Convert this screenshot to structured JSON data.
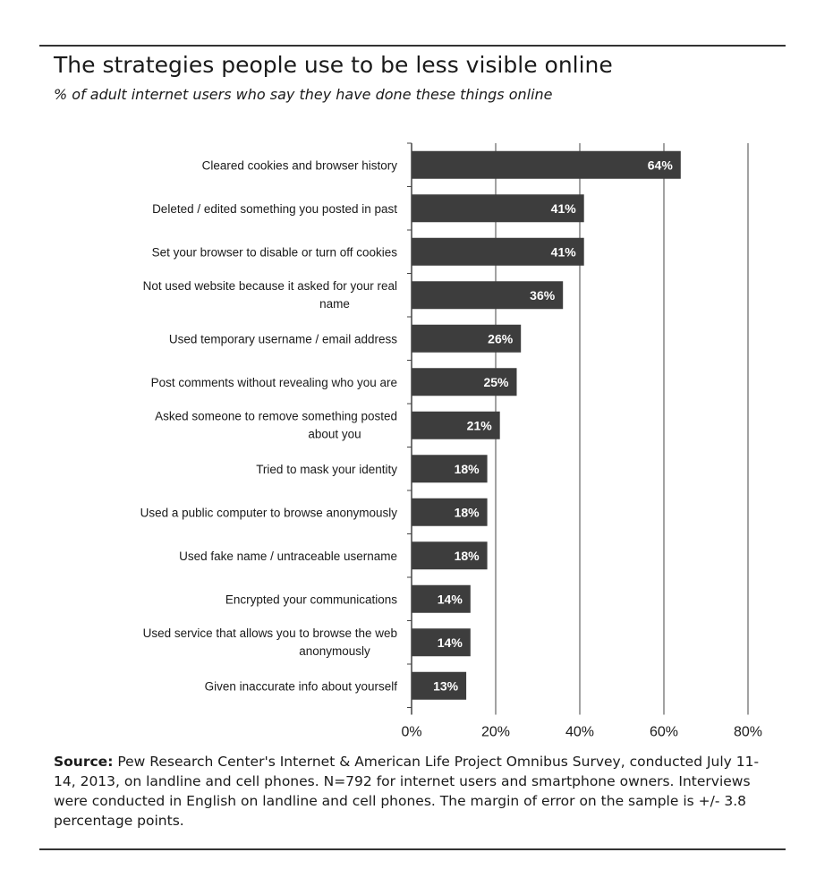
{
  "title": "The strategies people use to be less visible online",
  "subtitle": "% of adult internet users who say they have done these things online",
  "source_label": "Source:",
  "source_text": "Pew Research Center's Internet & American Life Project Omnibus Survey, conducted July 11-14, 2013, on landline and cell phones. N=792 for internet users and smartphone owners. Interviews were conducted in English on landline and cell phones. The margin of error on the sample is +/- 3.8 percentage points.",
  "colors": {
    "bar": "#3d3d3d",
    "grid": "#444444",
    "text": "#1a1a1a",
    "bar_label": "#ffffff"
  },
  "chart_data": {
    "type": "bar",
    "orientation": "horizontal",
    "categories": [
      [
        "Cleared cookies and browser history"
      ],
      [
        "Deleted / edited something you posted in past"
      ],
      [
        "Set your browser to disable or turn off cookies"
      ],
      [
        "Not used website because it asked for your real",
        "name"
      ],
      [
        "Used temporary username / email address"
      ],
      [
        "Post comments without revealing who you are"
      ],
      [
        "Asked someone to remove something posted",
        "about you"
      ],
      [
        "Tried to mask your identity"
      ],
      [
        "Used a public computer to browse anonymously"
      ],
      [
        "Used fake name / untraceable username"
      ],
      [
        "Encrypted your communications"
      ],
      [
        "Used service that allows you to browse the web",
        "anonymously"
      ],
      [
        "Given inaccurate info about yourself"
      ]
    ],
    "values": [
      64,
      41,
      41,
      36,
      26,
      25,
      21,
      18,
      18,
      18,
      14,
      14,
      13
    ],
    "data_labels": [
      "64%",
      "41%",
      "41%",
      "36%",
      "26%",
      "25%",
      "21%",
      "18%",
      "18%",
      "18%",
      "14%",
      "14%",
      "13%"
    ],
    "xlim": [
      0,
      80
    ],
    "x_ticks": [
      0,
      20,
      40,
      60,
      80
    ],
    "x_tick_labels": [
      "0%",
      "20%",
      "40%",
      "60%",
      "80%"
    ],
    "grid": true,
    "legend": false
  }
}
